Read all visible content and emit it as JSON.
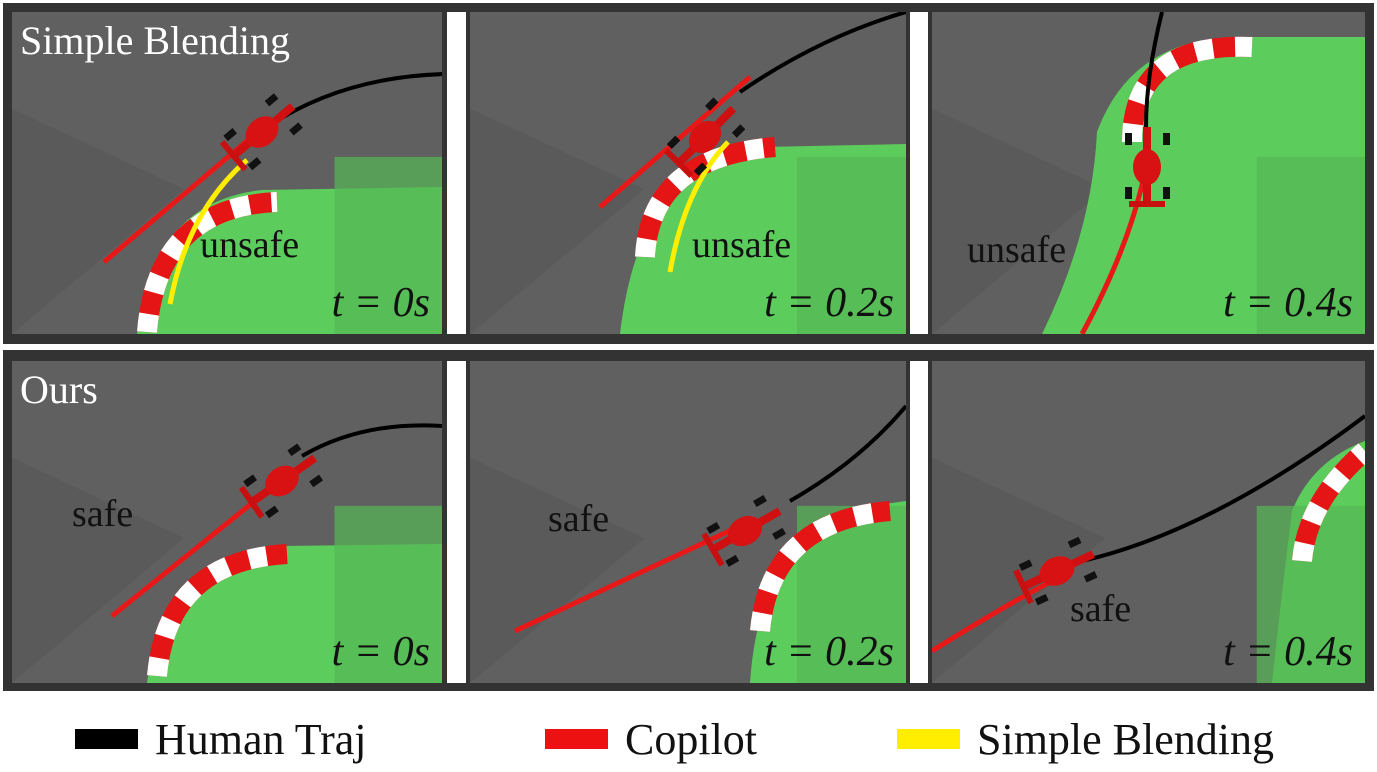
{
  "rows": [
    {
      "label": "Simple Blending",
      "panels": [
        {
          "status": "unsafe",
          "time": "t = 0s"
        },
        {
          "status": "unsafe",
          "time": "t = 0.2s"
        },
        {
          "status": "unsafe",
          "time": "t = 0.4s"
        }
      ]
    },
    {
      "label": "Ours",
      "panels": [
        {
          "status": "safe",
          "time": "t = 0s"
        },
        {
          "status": "safe",
          "time": "t = 0.2s"
        },
        {
          "status": "safe",
          "time": "t = 0.4s"
        }
      ]
    }
  ],
  "legend": [
    {
      "label": "Human Traj",
      "color": "#000000"
    },
    {
      "label": "Copilot",
      "color": "#ee1111"
    },
    {
      "label": "Simple Blending",
      "color": "#ffee00"
    }
  ]
}
